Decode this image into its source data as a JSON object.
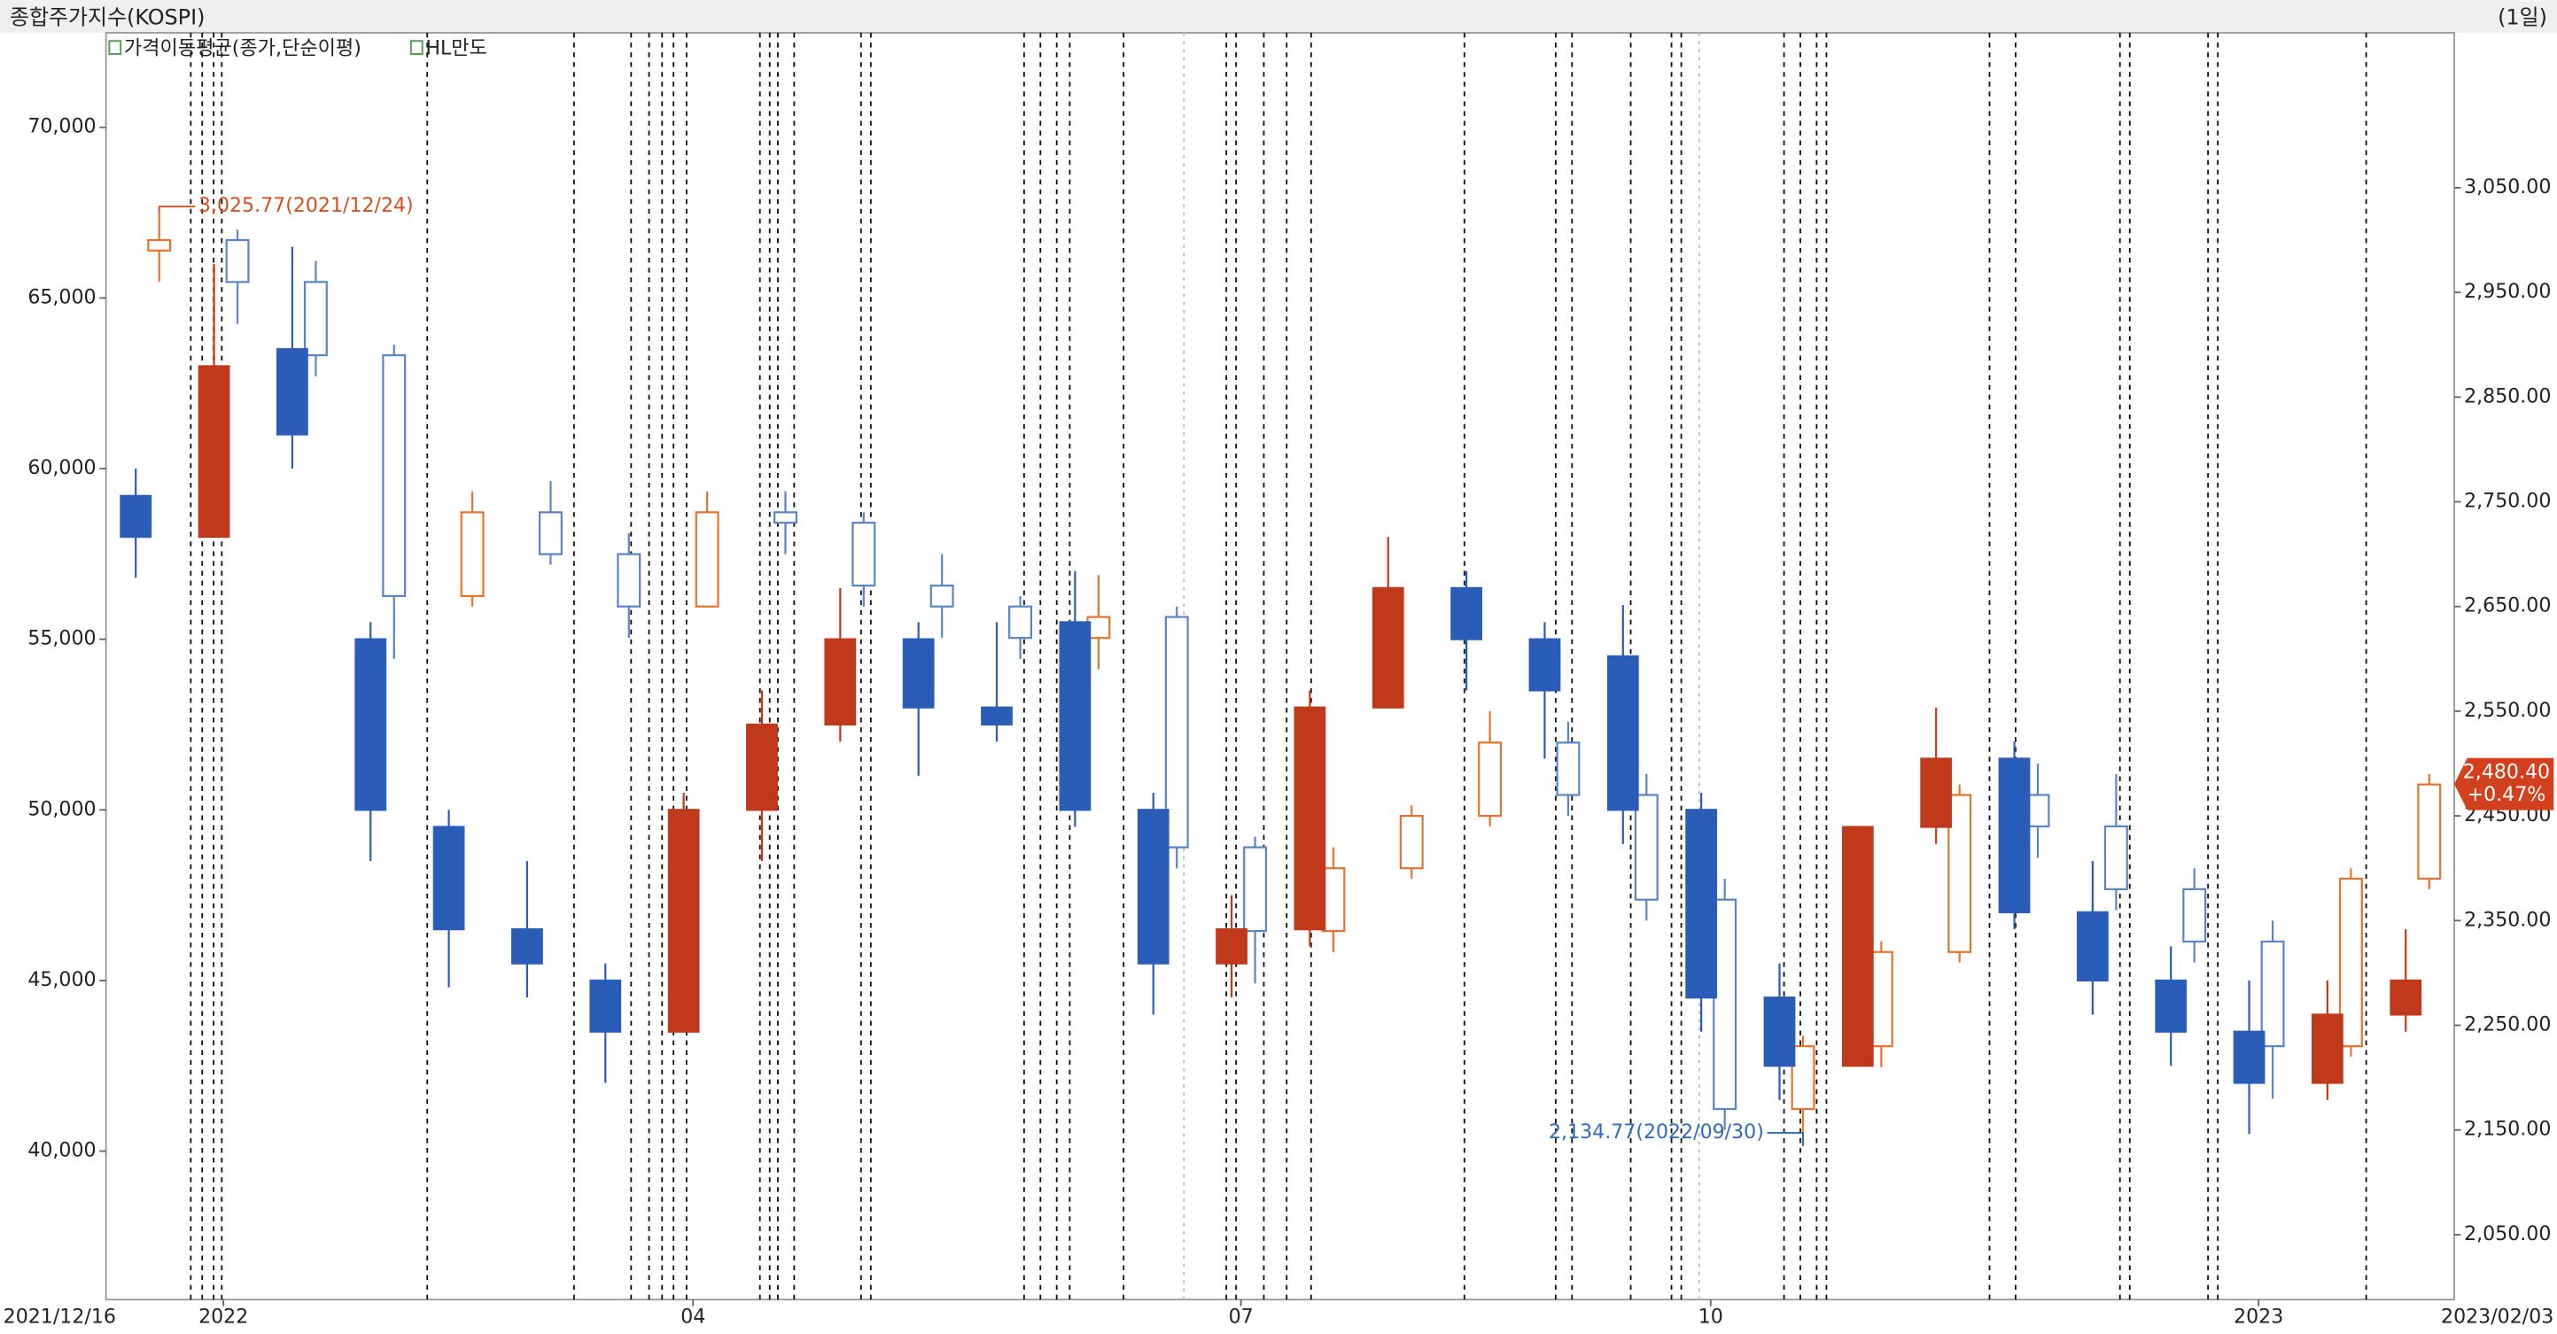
{
  "chart_data": {
    "type": "candlestick",
    "title": "종합주가지수(KOSPI)",
    "period": "(1일)",
    "legend": [
      "가격이동평균(종가,단순이평)",
      "HL만도"
    ],
    "categories": [
      "2021/12/16",
      "2022",
      null,
      null,
      null,
      null,
      null,
      "04",
      null,
      null,
      null,
      null,
      null,
      null,
      "07",
      null,
      null,
      null,
      null,
      null,
      "10",
      null,
      null,
      null,
      null,
      null,
      null,
      "2023",
      null,
      "2023/02/03"
    ],
    "ylim": [
      35650,
      72770
    ],
    "yticks": [
      {
        "value": 40000,
        "label": "40,000"
      },
      {
        "value": 45000,
        "label": "45,000"
      },
      {
        "value": 50000,
        "label": "50,000"
      },
      {
        "value": 55000,
        "label": "55,000"
      },
      {
        "value": 60000,
        "label": "60,000"
      },
      {
        "value": 65000,
        "label": "65,000"
      },
      {
        "value": 70000,
        "label": "70,000"
      }
    ],
    "y2lim": [
      1988,
      3198
    ],
    "y2ticks": [
      {
        "value": 2050,
        "label": "2,050.00"
      },
      {
        "value": 2150,
        "label": "2,150.00"
      },
      {
        "value": 2250,
        "label": "2,250.00"
      },
      {
        "value": 2350,
        "label": "2,350.00"
      },
      {
        "value": 2450,
        "label": "2,450.00"
      },
      {
        "value": 2550,
        "label": "2,550.00"
      },
      {
        "value": 2650,
        "label": "2,650.00"
      },
      {
        "value": 2750,
        "label": "2,750.00"
      },
      {
        "value": 2850,
        "label": "2,850.00"
      },
      {
        "value": 2950,
        "label": "2,950.00"
      },
      {
        "value": 3050,
        "label": "3,050.00"
      }
    ],
    "series": [
      {
        "axis": "y2",
        "style": "hollow",
        "up_color": "#e8732c",
        "down_color": "#5b84c4",
        "open": [
          2990,
          3000,
          2960,
          2890,
          2660,
          2740,
          2700,
          2650,
          2740,
          2730,
          2670,
          2650,
          2620,
          2640,
          2420,
          2340,
          2400,
          2450,
          2520,
          2470,
          2370,
          2170,
          2230,
          2320,
          2470,
          2440,
          2380,
          2330,
          2230,
          2390
        ],
        "high": [
          3025.77,
          3010,
          2980,
          2900,
          2760,
          2770,
          2720,
          2760,
          2760,
          2740,
          2700,
          2660,
          2680,
          2650,
          2430,
          2420,
          2460,
          2550,
          2540,
          2490,
          2390,
          2240,
          2330,
          2480,
          2500,
          2490,
          2400,
          2350,
          2400,
          2490
        ],
        "low": [
          2960,
          2920,
          2870,
          2600,
          2650,
          2690,
          2620,
          2650,
          2700,
          2650,
          2620,
          2600,
          2590,
          2400,
          2290,
          2320,
          2390,
          2440,
          2450,
          2350,
          2150,
          2134.77,
          2210,
          2310,
          2410,
          2360,
          2310,
          2180,
          2220,
          2380
        ],
        "close": [
          3000,
          2960,
          2890,
          2660,
          2740,
          2700,
          2650,
          2740,
          2730,
          2670,
          2650,
          2620,
          2640,
          2420,
          2340,
          2400,
          2450,
          2520,
          2470,
          2370,
          2170,
          2230,
          2320,
          2470,
          2440,
          2380,
          2330,
          2230,
          2390,
          2480
        ]
      },
      {
        "name": "HL만도",
        "axis": "y",
        "style": "filled",
        "up_color": "#c0391a",
        "down_color": "#2a5db8",
        "open": [
          59200,
          58000,
          63500,
          55000,
          49500,
          46500,
          45000,
          43500,
          50000,
          52500,
          55000,
          53000,
          55500,
          50000,
          45500,
          46500,
          53000,
          56500,
          55000,
          54500,
          50000,
          44500,
          42500,
          49500,
          51500,
          47000,
          45000,
          43500,
          42000,
          44000
        ],
        "high": [
          60000,
          66000,
          66500,
          55500,
          50000,
          48500,
          45500,
          50500,
          53500,
          56500,
          55500,
          55500,
          57000,
          50500,
          47500,
          53500,
          58000,
          57000,
          55500,
          56000,
          50500,
          45500,
          49500,
          53000,
          52000,
          48500,
          46000,
          45000,
          45000,
          46500
        ],
        "low": [
          56800,
          58000,
          60000,
          48500,
          44800,
          44500,
          42000,
          43500,
          48500,
          52000,
          51000,
          52000,
          49500,
          44000,
          44500,
          46000,
          53000,
          53500,
          51500,
          49000,
          43500,
          41500,
          42500,
          49000,
          46500,
          44000,
          42500,
          40500,
          41500,
          43500
        ],
        "close": [
          58000,
          63000,
          61000,
          50000,
          46500,
          45500,
          43500,
          50000,
          52500,
          55000,
          53000,
          52500,
          50000,
          45500,
          46500,
          53000,
          56500,
          55000,
          53500,
          50000,
          44500,
          42500,
          49500,
          51500,
          47000,
          45000,
          43500,
          42000,
          44000,
          45000
        ]
      }
    ],
    "annotations": [
      {
        "text": "3,025.77(2021/12/24)",
        "value": 3025.77,
        "at": 0,
        "color": "#d2501e",
        "side": "right"
      },
      {
        "text": "2,134.77(2022/09/30)",
        "value": 2134.77,
        "at": 21,
        "color": "#2f6bc0",
        "side": "left"
      }
    ],
    "last_price": {
      "value": 2480.4,
      "label": "2,480.40",
      "change": "+0.47%",
      "color": "#d2401e"
    }
  }
}
